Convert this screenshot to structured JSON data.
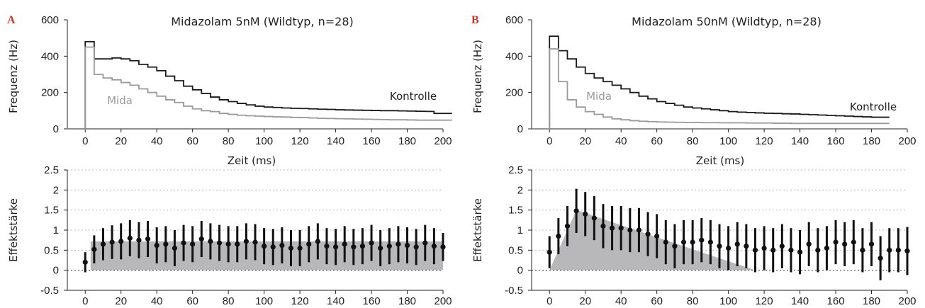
{
  "colors": {
    "kontrolle": "#1a1a1a",
    "mida": "#9a9a9a",
    "effect_fill": "#b8b8ba",
    "panel_label": "#c0392b",
    "grid": "#bbbbbb"
  },
  "panels": [
    {
      "label": "A",
      "freq": {
        "title": "Midazolam 5nM (Wildtyp, n=28)",
        "ylabel": "Frequenz (Hz)",
        "xlabel": "Zeit (ms)",
        "kontrolle_label": "Kontrolle",
        "mida_label": "Mida",
        "yticks": [
          "0",
          "200",
          "400",
          "600"
        ],
        "xticks": [
          "0",
          "20",
          "40",
          "60",
          "80",
          "100",
          "120",
          "140",
          "160",
          "180",
          "200"
        ]
      },
      "effect": {
        "ylabel": "Effektstärke",
        "yticks": [
          "-0.5",
          "0",
          "0.5",
          "1",
          "1.5",
          "2",
          "2.5"
        ],
        "xticks": [
          "0",
          "20",
          "40",
          "60",
          "80",
          "100",
          "120",
          "140",
          "160",
          "180",
          "200"
        ]
      }
    },
    {
      "label": "B",
      "freq": {
        "title": "Midazolam 50nM (Wildtyp, n=28)",
        "ylabel": "Frequenz (Hz)",
        "xlabel": "Zeit (ms)",
        "kontrolle_label": "Kontrolle",
        "mida_label": "Mida",
        "yticks": [
          "0",
          "200",
          "400",
          "600"
        ],
        "xticks": [
          "0",
          "20",
          "40",
          "60",
          "80",
          "100",
          "120",
          "140",
          "160",
          "180",
          "200"
        ]
      },
      "effect": {
        "ylabel": "Effektstärke",
        "yticks": [
          "-0.5",
          "0",
          "0.5",
          "1",
          "1.5",
          "2",
          "2.5"
        ],
        "xticks": [
          "0",
          "20",
          "40",
          "60",
          "80",
          "100",
          "120",
          "140",
          "160",
          "180",
          "200"
        ]
      }
    }
  ],
  "chart_data": [
    {
      "type": "line",
      "title": "Midazolam 5nM (Wildtyp, n=28)",
      "xlabel": "Zeit (ms)",
      "ylabel": "Frequenz (Hz)",
      "xlim": [
        -10,
        200
      ],
      "ylim": [
        0,
        600
      ],
      "step": true,
      "x": [
        -10,
        0,
        5,
        10,
        15,
        20,
        25,
        30,
        35,
        40,
        45,
        50,
        55,
        60,
        65,
        70,
        75,
        80,
        85,
        90,
        95,
        100,
        105,
        110,
        115,
        120,
        125,
        130,
        135,
        140,
        145,
        150,
        155,
        160,
        165,
        170,
        175,
        180,
        185,
        190,
        195,
        200
      ],
      "series": [
        {
          "name": "Kontrolle",
          "values": [
            0,
            480,
            385,
            385,
            390,
            385,
            375,
            355,
            340,
            320,
            290,
            265,
            235,
            215,
            195,
            175,
            160,
            150,
            140,
            132,
            125,
            120,
            118,
            115,
            113,
            112,
            110,
            108,
            107,
            105,
            104,
            103,
            102,
            101,
            100,
            100,
            99,
            98,
            97,
            96,
            85,
            85
          ]
        },
        {
          "name": "Mida",
          "values": [
            0,
            450,
            300,
            280,
            270,
            255,
            240,
            220,
            200,
            180,
            160,
            145,
            125,
            110,
            100,
            95,
            85,
            80,
            75,
            72,
            70,
            68,
            66,
            65,
            63,
            62,
            60,
            58,
            57,
            56,
            55,
            54,
            53,
            52,
            51,
            50,
            50,
            49,
            48,
            48,
            48,
            48
          ]
        }
      ]
    },
    {
      "type": "scatter",
      "xlabel": "",
      "ylabel": "Effektstärke",
      "xlim": [
        -10,
        200
      ],
      "ylim": [
        -0.5,
        2.5
      ],
      "grid": true,
      "x": [
        0,
        5,
        10,
        15,
        20,
        25,
        30,
        35,
        40,
        45,
        50,
        55,
        60,
        65,
        70,
        75,
        80,
        85,
        90,
        95,
        100,
        105,
        110,
        115,
        120,
        125,
        130,
        135,
        140,
        145,
        150,
        155,
        160,
        165,
        170,
        175,
        180,
        185,
        190,
        195,
        200
      ],
      "series": [
        {
          "name": "",
          "values": [
            0.2,
            0.52,
            0.65,
            0.7,
            0.72,
            0.8,
            0.75,
            0.78,
            0.62,
            0.65,
            0.55,
            0.68,
            0.65,
            0.78,
            0.72,
            0.68,
            0.65,
            0.65,
            0.72,
            0.7,
            0.6,
            0.58,
            0.62,
            0.55,
            0.55,
            0.65,
            0.72,
            0.6,
            0.58,
            0.65,
            0.58,
            0.6,
            0.68,
            0.55,
            0.6,
            0.65,
            0.62,
            0.58,
            0.68,
            0.6,
            0.58
          ],
          "err": [
            0.25,
            0.35,
            0.4,
            0.42,
            0.45,
            0.45,
            0.45,
            0.45,
            0.45,
            0.45,
            0.45,
            0.45,
            0.45,
            0.45,
            0.45,
            0.45,
            0.45,
            0.45,
            0.45,
            0.45,
            0.45,
            0.45,
            0.45,
            0.45,
            0.45,
            0.45,
            0.45,
            0.45,
            0.45,
            0.45,
            0.45,
            0.45,
            0.45,
            0.45,
            0.45,
            0.45,
            0.45,
            0.45,
            0.45,
            0.45,
            0.35
          ]
        },
        {
          "name": "",
          "area": true,
          "x": [
            3,
            3,
            200,
            200
          ],
          "values": [
            0,
            0.72,
            0.72,
            0
          ]
        }
      ]
    },
    {
      "type": "line",
      "title": "Midazolam 50nM (Wildtyp, n=28)",
      "xlabel": "Zeit (ms)",
      "ylabel": "Frequenz (Hz)",
      "xlim": [
        -10,
        200
      ],
      "ylim": [
        0,
        600
      ],
      "step": true,
      "x": [
        -10,
        0,
        5,
        10,
        15,
        20,
        25,
        30,
        35,
        40,
        45,
        50,
        55,
        60,
        65,
        70,
        75,
        80,
        85,
        90,
        95,
        100,
        105,
        110,
        115,
        120,
        125,
        130,
        135,
        140,
        145,
        150,
        155,
        160,
        165,
        170,
        175,
        180,
        185
      ],
      "series": [
        {
          "name": "Kontrolle",
          "values": [
            0,
            510,
            430,
            385,
            340,
            305,
            280,
            260,
            240,
            220,
            200,
            180,
            165,
            150,
            140,
            130,
            120,
            115,
            110,
            105,
            100,
            95,
            92,
            90,
            88,
            86,
            85,
            83,
            82,
            80,
            78,
            76,
            74,
            72,
            70,
            68,
            66,
            64,
            64
          ]
        },
        {
          "name": "Mida",
          "values": [
            0,
            440,
            260,
            160,
            120,
            95,
            80,
            65,
            55,
            50,
            45,
            42,
            40,
            38,
            37,
            36,
            35,
            35,
            34,
            34,
            33,
            33,
            33,
            32,
            32,
            32,
            31,
            31,
            30,
            30,
            30,
            30,
            30,
            30,
            30,
            30,
            30,
            30,
            30
          ]
        }
      ]
    },
    {
      "type": "scatter",
      "xlabel": "",
      "ylabel": "Effektstärke",
      "xlim": [
        -10,
        200
      ],
      "ylim": [
        -0.5,
        2.5
      ],
      "grid": true,
      "x": [
        0,
        5,
        10,
        15,
        20,
        25,
        30,
        35,
        40,
        45,
        50,
        55,
        60,
        65,
        70,
        75,
        80,
        85,
        90,
        95,
        100,
        105,
        110,
        115,
        120,
        125,
        130,
        135,
        140,
        145,
        150,
        155,
        160,
        165,
        170,
        175,
        180,
        185,
        190,
        195,
        200
      ],
      "series": [
        {
          "name": "",
          "values": [
            0.45,
            0.85,
            1.1,
            1.48,
            1.4,
            1.3,
            1.1,
            1.05,
            1.05,
            1.0,
            1.0,
            0.9,
            0.85,
            0.7,
            0.6,
            0.7,
            0.7,
            0.75,
            0.7,
            0.6,
            0.55,
            0.65,
            0.6,
            0.5,
            0.55,
            0.5,
            0.6,
            0.5,
            0.45,
            0.65,
            0.5,
            0.55,
            0.7,
            0.65,
            0.7,
            0.5,
            0.65,
            0.3,
            0.5,
            0.5,
            0.48
          ],
          "err": [
            0.4,
            0.45,
            0.5,
            0.55,
            0.55,
            0.55,
            0.55,
            0.55,
            0.55,
            0.55,
            0.55,
            0.55,
            0.55,
            0.55,
            0.55,
            0.55,
            0.55,
            0.55,
            0.55,
            0.55,
            0.55,
            0.55,
            0.55,
            0.55,
            0.55,
            0.55,
            0.55,
            0.55,
            0.55,
            0.55,
            0.55,
            0.55,
            0.55,
            0.55,
            0.55,
            0.55,
            0.55,
            0.55,
            0.55,
            0.55,
            0.6
          ]
        },
        {
          "name": "",
          "area": true,
          "x": [
            0,
            15,
            115
          ],
          "values": [
            0,
            1.5,
            0
          ]
        }
      ]
    }
  ]
}
